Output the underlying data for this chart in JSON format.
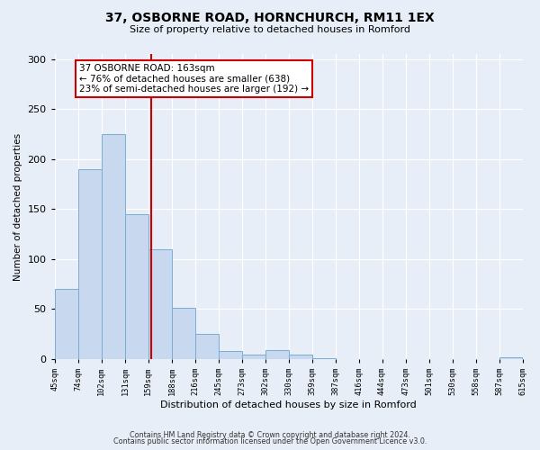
{
  "title": "37, OSBORNE ROAD, HORNCHURCH, RM11 1EX",
  "subtitle": "Size of property relative to detached houses in Romford",
  "xlabel": "Distribution of detached houses by size in Romford",
  "ylabel": "Number of detached properties",
  "bin_edges": [
    45,
    74,
    102,
    131,
    159,
    188,
    216,
    245,
    273,
    302,
    330,
    359,
    387,
    416,
    444,
    473,
    501,
    530,
    558,
    587,
    615
  ],
  "bin_counts": [
    70,
    190,
    225,
    145,
    110,
    51,
    25,
    8,
    4,
    9,
    4,
    1,
    0,
    0,
    0,
    0,
    0,
    0,
    0,
    2
  ],
  "bar_color": "#c8d9ef",
  "bar_edgecolor": "#7aadd4",
  "property_size": 163,
  "vline_color": "#cc0000",
  "annotation_line1": "37 OSBORNE ROAD: 163sqm",
  "annotation_line2": "← 76% of detached houses are smaller (638)",
  "annotation_line3": "23% of semi-detached houses are larger (192) →",
  "annotation_box_color": "#ffffff",
  "annotation_box_edgecolor": "#cc0000",
  "ylim": [
    0,
    305
  ],
  "yticks": [
    0,
    50,
    100,
    150,
    200,
    250,
    300
  ],
  "footnote1": "Contains HM Land Registry data © Crown copyright and database right 2024.",
  "footnote2": "Contains public sector information licensed under the Open Government Licence v3.0.",
  "background_color": "#e8eef7",
  "plot_background": "#e8eef7",
  "grid_color": "#ffffff"
}
